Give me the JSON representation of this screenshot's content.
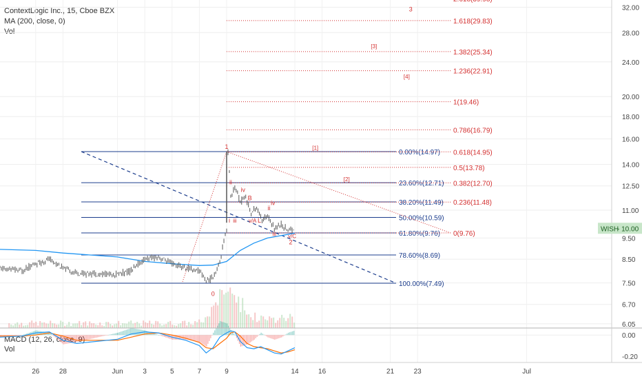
{
  "header": {
    "symbol_line": "ContextLogic Inc., 15, Cboe BZX",
    "ma_line": "MA (200, close, 0)",
    "vol_line": "Vol",
    "macd_line": "MACD (12, 26, close, 9)",
    "macd_vol_line": "Vol"
  },
  "colors": {
    "fib_blue": "#1b3c8c",
    "ext_red": "#d32f2f",
    "ma_blue": "#2196f3",
    "macd_line": "#2196f3",
    "signal_line": "#ff6d00",
    "candle": "#555555",
    "price_tag_bg": "#c8e6c9"
  },
  "chart_data": [
    {
      "type": "candlestick",
      "title": "ContextLogic Inc., 15, Cboe BZX",
      "series": [
        {
          "name": "MA (200, close, 0)",
          "x": [
            "24",
            "26",
            "28",
            "Jun",
            "3",
            "5",
            "7",
            "8",
            "9",
            "10",
            "11",
            "12",
            "14"
          ],
          "values": [
            8.95,
            8.9,
            8.78,
            8.6,
            8.4,
            8.3,
            8.22,
            8.24,
            8.4,
            8.9,
            9.25,
            9.5,
            9.75
          ]
        }
      ],
      "price_path": {
        "x": [
          "24",
          "25",
          "26",
          "27",
          "28",
          "29",
          "Jun",
          "2",
          "3",
          "4",
          "5",
          "6",
          "7",
          "7.5",
          "8",
          "8.5",
          "9",
          "9.1",
          "9.3",
          "9.6",
          "10",
          "10.4",
          "10.8",
          "11.2",
          "11.6",
          "12",
          "12.5",
          "13",
          "13.5",
          "14"
        ],
        "values": [
          8.1,
          8.0,
          8.3,
          8.5,
          8.1,
          7.9,
          7.85,
          8.0,
          8.5,
          8.6,
          8.3,
          8.1,
          8.0,
          7.6,
          7.7,
          8.4,
          10.0,
          14.97,
          11.8,
          12.4,
          11.5,
          11.8,
          10.8,
          11.2,
          10.4,
          10.7,
          10.0,
          10.2,
          9.9,
          10.0
        ]
      },
      "xticks": [
        "26",
        "Jun",
        "3",
        "5",
        "7",
        "9",
        "14",
        "16",
        "21",
        "23",
        "28",
        "Jul"
      ],
      "yticks": [
        "32.00",
        "28.00",
        "24.00",
        "20.00",
        "18.00",
        "16.00",
        "14.00",
        "12.50",
        "11.00",
        "9.50",
        "8.50",
        "7.50",
        "6.70",
        "6.05"
      ],
      "yscale": "log",
      "ylim": [
        5.9,
        33.5
      ],
      "price_label": {
        "symbol": "WISH",
        "value": "10.00"
      },
      "fib_retracement": [
        {
          "label": "0.00%(14.97)",
          "value": 14.97
        },
        {
          "label": "23.60%(12.71)",
          "value": 12.71
        },
        {
          "label": "38.20%(11.49)",
          "value": 11.49
        },
        {
          "label": "50.00%(10.59)",
          "value": 10.59
        },
        {
          "label": "61.80%(9.76)",
          "value": 9.76
        },
        {
          "label": "78.60%(8.69)",
          "value": 8.69
        },
        {
          "label": "100.00%(7.49)",
          "value": 7.49
        }
      ],
      "fib_extension": [
        {
          "label": "1.618(29.83)",
          "value": 29.83
        },
        {
          "label": "1.382(25.34)",
          "value": 25.34
        },
        {
          "label": "1.236(22.91)",
          "value": 22.91
        },
        {
          "label": "1(19.46)",
          "value": 19.46
        },
        {
          "label": "0.786(16.79)",
          "value": 16.79
        },
        {
          "label": "0.618(14.95)",
          "value": 14.95
        },
        {
          "label": "0.5(13.78)",
          "value": 13.78
        },
        {
          "label": "0.382(12.70)",
          "value": 12.7
        },
        {
          "label": "0.236(11.48)",
          "value": 11.48
        },
        {
          "label": "0(9.76)",
          "value": 9.76
        }
      ],
      "wave_labels": [
        {
          "text": "0",
          "x": "8",
          "y": 7.0
        },
        {
          "text": "1",
          "x": "9",
          "y": 15.2
        },
        {
          "text": "ii",
          "x": "9.3",
          "y": 12.6
        },
        {
          "text": "i",
          "x": "9.2",
          "y": 10.3
        },
        {
          "text": "iii",
          "x": "9.6",
          "y": 10.3
        },
        {
          "text": "iv",
          "x": "10.2",
          "y": 12.1
        },
        {
          "text": "B",
          "x": "10.7",
          "y": 11.6
        },
        {
          "text": "v/A",
          "x": "10.9",
          "y": 10.3
        },
        {
          "text": "L",
          "x": "11.4",
          "y": 10.3
        },
        {
          "text": "iv",
          "x": "12.4",
          "y": 11.3
        },
        {
          "text": "ii",
          "x": "12.1",
          "y": 11.0
        },
        {
          "text": "iii",
          "x": "12.5",
          "y": 9.6
        },
        {
          "text": "v/C",
          "x": "13.8",
          "y": 9.5
        },
        {
          "text": "2",
          "x": "13.7",
          "y": 9.2
        },
        {
          "text": "[1]",
          "x": "15.5",
          "y": 15.1
        },
        {
          "text": "[2]",
          "x": "17.8",
          "y": 12.8
        },
        {
          "text": "[3]",
          "x": "19.8",
          "y": 25.8
        },
        {
          "text": "[4]",
          "x": "22.2",
          "y": 22.0
        },
        {
          "text": "3",
          "x": "22.5",
          "y": 31.3
        }
      ]
    },
    {
      "type": "bar",
      "title": "MACD (12, 26, close, 9)",
      "yticks": [
        "0.00",
        "-0.20"
      ],
      "ylim": [
        -0.26,
        0.06
      ],
      "series": [
        {
          "name": "MACD",
          "x": [
            "24",
            "25",
            "26",
            "27",
            "28",
            "29",
            "Jun",
            "2",
            "3",
            "4",
            "5",
            "6",
            "7",
            "7.5",
            "8",
            "8.5",
            "9",
            "9.3",
            "9.6",
            "10",
            "10.5",
            "11",
            "11.5",
            "12",
            "12.5",
            "13",
            "13.5",
            "14"
          ],
          "values": [
            -0.02,
            -0.01,
            0.02,
            0.03,
            -0.05,
            -0.08,
            -0.04,
            0.01,
            0.03,
            0.02,
            -0.02,
            -0.05,
            -0.1,
            -0.17,
            -0.12,
            -0.02,
            0.02,
            0.04,
            0.03,
            -0.06,
            -0.12,
            -0.13,
            -0.11,
            -0.14,
            -0.17,
            -0.18,
            -0.15,
            -0.12
          ]
        },
        {
          "name": "Signal",
          "x": [
            "24",
            "25",
            "26",
            "27",
            "28",
            "29",
            "Jun",
            "2",
            "3",
            "4",
            "5",
            "6",
            "7",
            "7.5",
            "8",
            "8.5",
            "9",
            "9.3",
            "9.6",
            "10",
            "10.5",
            "11",
            "11.5",
            "12",
            "12.5",
            "13",
            "13.5",
            "14"
          ],
          "values": [
            -0.01,
            -0.01,
            0.0,
            0.02,
            -0.01,
            -0.05,
            -0.05,
            -0.02,
            0.01,
            0.02,
            0.0,
            -0.03,
            -0.07,
            -0.12,
            -0.13,
            -0.08,
            -0.03,
            0.02,
            0.03,
            -0.01,
            -0.08,
            -0.11,
            -0.12,
            -0.13,
            -0.15,
            -0.17,
            -0.16,
            -0.14
          ]
        }
      ]
    }
  ]
}
